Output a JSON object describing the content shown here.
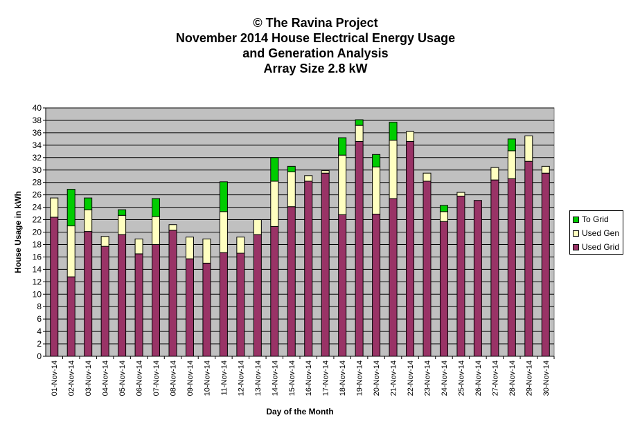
{
  "chart_data": {
    "type": "bar",
    "stacked": true,
    "title": [
      "© The Ravina Project",
      "November 2014 House Electrical Energy Usage",
      "and Generation Analysis",
      "Array Size 2.8 kW"
    ],
    "xlabel": "Day of the Month",
    "ylabel": "House Usage in kWh",
    "ylim": [
      0,
      40
    ],
    "ytick_step": 2,
    "grid": true,
    "legend_position": "right",
    "categories": [
      "01-Nov-14",
      "02-Nov-14",
      "03-Nov-14",
      "04-Nov-14",
      "05-Nov-14",
      "06-Nov-14",
      "07-Nov-14",
      "08-Nov-14",
      "09-Nov-14",
      "10-Nov-14",
      "11-Nov-14",
      "12-Nov-14",
      "13-Nov-14",
      "14-Nov-14",
      "15-Nov-14",
      "16-Nov-14",
      "17-Nov-14",
      "18-Nov-14",
      "19-Nov-14",
      "20-Nov-14",
      "21-Nov-14",
      "22-Nov-14",
      "23-Nov-14",
      "24-Nov-14",
      "25-Nov-14",
      "26-Nov-14",
      "27-Nov-14",
      "28-Nov-14",
      "29-Nov-14",
      "30-Nov-14"
    ],
    "series": [
      {
        "name": "Used Grid",
        "color": "#993366",
        "values": [
          22.4,
          12.8,
          20.1,
          17.7,
          19.6,
          16.5,
          18.0,
          20.3,
          15.7,
          15.0,
          16.7,
          16.6,
          19.6,
          20.9,
          24.1,
          28.2,
          29.5,
          22.8,
          34.6,
          22.9,
          25.4,
          34.6,
          28.2,
          21.7,
          25.8,
          25.1,
          28.4,
          28.6,
          31.4,
          29.5
        ]
      },
      {
        "name": "Used Gen",
        "color": "#FFFFC0",
        "values": [
          3.1,
          8.2,
          3.5,
          1.6,
          3.1,
          2.4,
          4.5,
          0.9,
          3.5,
          3.9,
          6.6,
          2.6,
          2.4,
          7.3,
          5.6,
          0.9,
          0.4,
          9.6,
          2.6,
          7.6,
          9.4,
          1.6,
          1.3,
          1.6,
          0.6,
          0.0,
          2.0,
          4.5,
          4.1,
          1.1
        ]
      },
      {
        "name": "To Grid",
        "color": "#00CC00",
        "values": [
          0.0,
          5.9,
          1.9,
          0.0,
          0.9,
          0.0,
          2.9,
          0.0,
          0.0,
          0.0,
          4.8,
          0.0,
          0.0,
          3.8,
          0.9,
          0.0,
          0.0,
          2.8,
          0.9,
          2.0,
          2.9,
          0.0,
          0.0,
          1.0,
          0.0,
          0.0,
          0.0,
          1.9,
          0.0,
          0.0
        ]
      }
    ]
  }
}
